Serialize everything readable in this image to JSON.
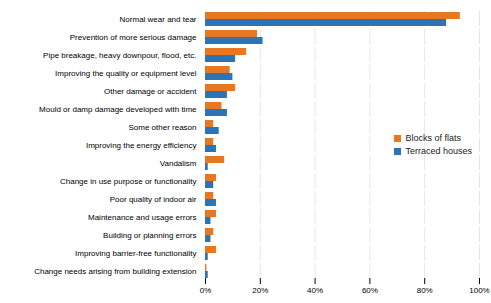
{
  "chart_data": {
    "type": "bar",
    "orientation": "horizontal",
    "categories": [
      "Normal wear and tear",
      "Prevention of more serious damage",
      "Pipe breakage, heavy downpour, flood, etc.",
      "Improving the quality or equipment level",
      "Other damage or accident",
      "Mould or damp damage developed with time",
      "Some other reason",
      "Improving the energy efficiency",
      "Vandalism",
      "Change in use purpose or functionality",
      "Poor quality of indoor air",
      "Maintenance and usage errors",
      "Building or planning errors",
      "Improving barrier-free functionality",
      "Change needs arising from building extension"
    ],
    "series": [
      {
        "name": "Blocks of flats",
        "color": "#E87722",
        "values": [
          93,
          19,
          15,
          9,
          11,
          6,
          3,
          3,
          7,
          4,
          3,
          4,
          3,
          4,
          0.5
        ]
      },
      {
        "name": "Terraced houses",
        "color": "#2E74B5",
        "values": [
          88,
          21,
          11,
          10,
          8,
          8,
          5,
          4,
          1,
          3,
          4,
          2,
          2,
          1,
          1
        ]
      }
    ],
    "xlim": [
      0,
      100
    ],
    "xticks": [
      {
        "value": 0,
        "label": "0%"
      },
      {
        "value": 20,
        "label": "20%"
      },
      {
        "value": 40,
        "label": "40%"
      },
      {
        "value": 60,
        "label": "60%"
      },
      {
        "value": 80,
        "label": "80%"
      },
      {
        "value": 100,
        "label": "100%"
      }
    ],
    "grid": true,
    "legend": "right"
  }
}
